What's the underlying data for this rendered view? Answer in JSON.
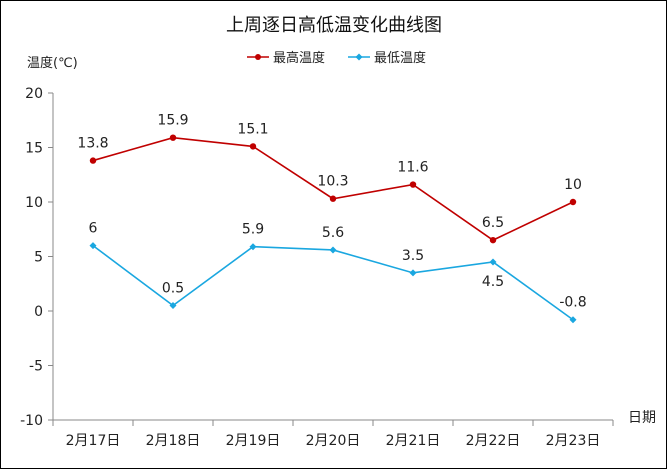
{
  "chart_data": {
    "type": "line",
    "title": "上周逐日高低温变化曲线图",
    "ylabel": "温度(℃)",
    "xlabel": "日期",
    "categories": [
      "2月17日",
      "2月18日",
      "2月19日",
      "2月20日",
      "2月21日",
      "2月22日",
      "2月23日"
    ],
    "y_ticks": [
      "20",
      "15",
      "10",
      "5",
      "0",
      "-5",
      "-10"
    ],
    "ylim": [
      -10,
      20
    ],
    "grid": false,
    "legend_position": "top",
    "series": [
      {
        "name": "最高温度",
        "color": "#c00000",
        "marker": "circle",
        "values": [
          13.8,
          15.9,
          15.1,
          10.3,
          11.6,
          6.5,
          10
        ],
        "labels": [
          "13.8",
          "15.9",
          "15.1",
          "10.3",
          "11.6",
          "6.5",
          "10"
        ]
      },
      {
        "name": "最低温度",
        "color": "#1aa7e0",
        "marker": "diamond",
        "values": [
          6,
          0.5,
          5.9,
          5.6,
          3.5,
          4.5,
          -0.8
        ],
        "labels": [
          "6",
          "0.5",
          "5.9",
          "5.6",
          "3.5",
          "4.5",
          "-0.8"
        ]
      }
    ]
  }
}
